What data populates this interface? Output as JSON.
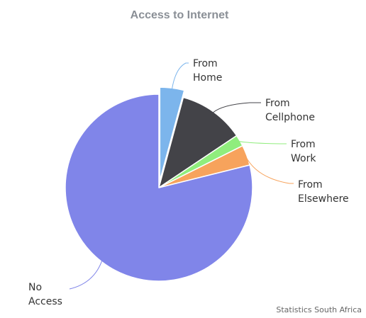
{
  "chart_data": {
    "type": "pie",
    "title": "Access to Internet",
    "credit": "Statistics South Africa",
    "legend": "none",
    "slices": [
      {
        "label_lines": [
          "From",
          "Home"
        ],
        "value": 4.2,
        "color": "#7cb5ec",
        "exploded": true
      },
      {
        "label_lines": [
          "From",
          "Cellphone"
        ],
        "value": 11.4,
        "color": "#434348",
        "exploded": false
      },
      {
        "label_lines": [
          "From",
          "Work"
        ],
        "value": 2.0,
        "color": "#90ed7d",
        "exploded": false
      },
      {
        "label_lines": [
          "From",
          "Elsewhere"
        ],
        "value": 3.5,
        "color": "#f7a35c",
        "exploded": false
      },
      {
        "label_lines": [
          "No",
          "Access"
        ],
        "value": 78.9,
        "color": "#8085e9",
        "exploded": false
      }
    ]
  }
}
